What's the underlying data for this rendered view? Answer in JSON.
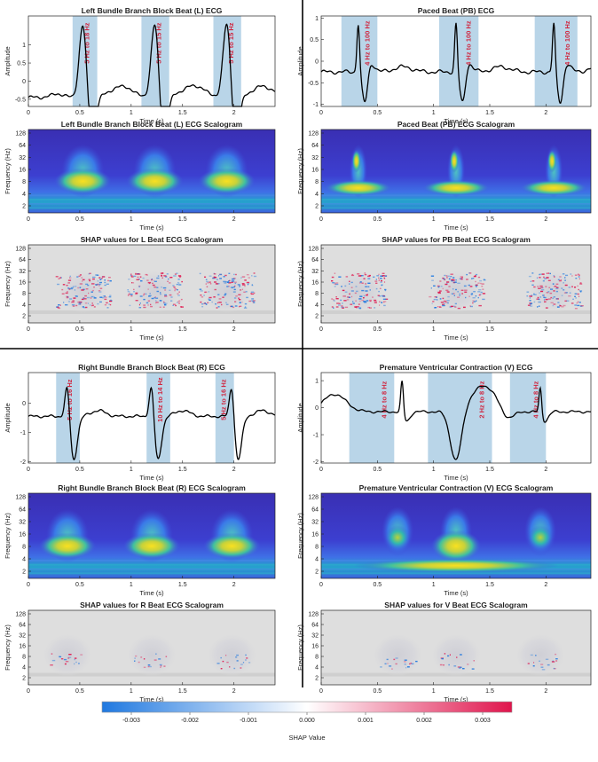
{
  "panels": [
    {
      "id": "L",
      "ecg": {
        "title": "Left Bundle Branch Block Beat (L) ECG",
        "ylabel": "Amplitude",
        "xlabel": "Time (s)",
        "yticks": [
          "1",
          "0.5",
          "0",
          "-0.5"
        ],
        "ylim": [
          -0.7,
          1.8
        ],
        "beats": [
          0.53,
          1.23,
          1.93
        ],
        "bands": [
          {
            "x0": 0.43,
            "x1": 0.67,
            "label": "5 Hz to 18 Hz"
          },
          {
            "x0": 1.1,
            "x1": 1.37,
            "label": "5 Hz to 15 Hz"
          },
          {
            "x0": 1.8,
            "x1": 2.07,
            "label": "5 Hz to 15 Hz"
          }
        ]
      },
      "scalogram": {
        "title": "Left Bundle Branch Block Beat (L) ECG Scalogram",
        "ylabel": "Frequency (Hz)",
        "xlabel": "Time (s)",
        "yticks": [
          "128",
          "64",
          "32",
          "16",
          "8",
          "4",
          "2"
        ]
      },
      "shap": {
        "title": "SHAP values for L Beat ECG Scalogram",
        "ylabel": "Frequency (Hz)",
        "xlabel": "Time (s)",
        "yticks": [
          "128",
          "64",
          "32",
          "16",
          "8",
          "4",
          "2"
        ]
      }
    },
    {
      "id": "PB",
      "ecg": {
        "title": "Paced Beat (PB) ECG",
        "ylabel": "Amplitude",
        "xlabel": "Time (s)",
        "yticks": [
          "1",
          "0.5",
          "0",
          "-0.5",
          "-1"
        ],
        "ylim": [
          -1.05,
          1.05
        ],
        "beats": [
          0.33,
          1.2,
          2.07
        ],
        "bands": [
          {
            "x0": 0.18,
            "x1": 0.5,
            "label": "4 Hz to 100 Hz"
          },
          {
            "x0": 1.05,
            "x1": 1.4,
            "label": "4 Hz to 100 Hz"
          },
          {
            "x0": 1.9,
            "x1": 2.28,
            "label": "4 Hz to 100 Hz"
          }
        ]
      },
      "scalogram": {
        "title": "Paced Beat (PB) ECG Scalogram",
        "ylabel": "Frequency (Hz)",
        "xlabel": "Time (s)",
        "yticks": [
          "128",
          "64",
          "32",
          "16",
          "8",
          "4",
          "2"
        ]
      },
      "shap": {
        "title": "SHAP values for PB Beat ECG Scalogram",
        "ylabel": "Frequency (Hz)",
        "xlabel": "Time (s)",
        "yticks": [
          "128",
          "64",
          "32",
          "16",
          "8",
          "4",
          "2"
        ]
      }
    },
    {
      "id": "R",
      "ecg": {
        "title": "Right Bundle Branch Block Beat (R) ECG",
        "ylabel": "Amplitude",
        "xlabel": "Time (s)",
        "yticks": [
          "0",
          "-1",
          "-2"
        ],
        "ylim": [
          -2.05,
          1.05
        ],
        "beats": [
          0.38,
          1.2,
          1.98
        ],
        "bands": [
          {
            "x0": 0.27,
            "x1": 0.5,
            "label": "5 Hz to 16 Hz"
          },
          {
            "x0": 1.15,
            "x1": 1.38,
            "label": "10 Hz to 14 Hz"
          },
          {
            "x0": 1.82,
            "x1": 2.0,
            "label": "5 Hz to 16 Hz"
          }
        ]
      },
      "scalogram": {
        "title": "Right Bundle Branch Block Beat (R) ECG Scalogram",
        "ylabel": "Frequency (Hz)",
        "xlabel": "Time (s)",
        "yticks": [
          "128",
          "64",
          "32",
          "16",
          "8",
          "4",
          "2"
        ]
      },
      "shap": {
        "title": "SHAP values for R Beat ECG Scalogram",
        "ylabel": "Frequency (Hz)",
        "xlabel": "Time (s)",
        "yticks": [
          "128",
          "64",
          "32",
          "16",
          "8",
          "4",
          "2"
        ]
      }
    },
    {
      "id": "V",
      "ecg": {
        "title": "Premature Ventricular Contraction (V) ECG",
        "ylabel": "Amplitude",
        "xlabel": "Time (s)",
        "yticks": [
          "1",
          "0",
          "-1",
          "-2"
        ],
        "ylim": [
          -2.05,
          1.3
        ],
        "beats": [
          0.72,
          1.95
        ],
        "bands": [
          {
            "x0": 0.25,
            "x1": 0.65,
            "label": "4 Hz to 8 Hz"
          },
          {
            "x0": 0.95,
            "x1": 1.52,
            "label": "2 Hz to 8 Hz"
          },
          {
            "x0": 1.68,
            "x1": 2.0,
            "label": "4 Hz to 8 Hz"
          }
        ]
      },
      "scalogram": {
        "title": "Premature Ventricular Contraction (V) ECG Scalogram",
        "ylabel": "Frequency (Hz)",
        "xlabel": "Time (s)",
        "yticks": [
          "128",
          "64",
          "32",
          "16",
          "8",
          "4",
          "2"
        ]
      },
      "shap": {
        "title": "SHAP values for V Beat ECG Scalogram",
        "ylabel": "Frequency (Hz)",
        "xlabel": "Time (s)",
        "yticks": [
          "128",
          "64",
          "32",
          "16",
          "8",
          "4",
          "2"
        ]
      }
    }
  ],
  "time_axis": {
    "xlim": [
      0,
      2.4
    ],
    "ticks": [
      "0",
      "0.5",
      "1",
      "1.5",
      "2"
    ],
    "tick_values": [
      0,
      0.5,
      1,
      1.5,
      2
    ]
  },
  "colorbar": {
    "label": "SHAP Value",
    "ticks": [
      "-0.003",
      "-0.002",
      "-0.001",
      "0.000",
      "0.001",
      "0.002",
      "0.003"
    ],
    "tick_values": [
      -0.003,
      -0.002,
      -0.001,
      0.0,
      0.001,
      0.002,
      0.003
    ],
    "range": [
      -0.0035,
      0.0035
    ],
    "neg_color": "#1f78e0",
    "pos_color": "#e0144c"
  },
  "colors": {
    "band": "#b9d5e8",
    "band_label": "#d0263f",
    "trace": "#000000",
    "parula_low": "#3a2fb3",
    "parula_high": "#f9e020"
  },
  "chart_data": [
    {
      "type": "line",
      "title": "Left Bundle Branch Block Beat (L) ECG",
      "xlabel": "Time (s)",
      "ylabel": "Amplitude",
      "xlim": [
        0,
        2.4
      ],
      "ylim": [
        -0.7,
        1.8
      ],
      "annotations": [
        "5 Hz to 18 Hz",
        "5 Hz to 15 Hz",
        "5 Hz to 15 Hz"
      ]
    },
    {
      "type": "heatmap",
      "title": "Left Bundle Branch Block Beat (L) ECG Scalogram",
      "xlabel": "Time (s)",
      "ylabel": "Frequency (Hz)"
    },
    {
      "type": "heatmap",
      "title": "SHAP values for L Beat ECG Scalogram",
      "xlabel": "Time (s)",
      "ylabel": "Frequency (Hz)"
    },
    {
      "type": "line",
      "title": "Paced Beat (PB) ECG",
      "xlabel": "Time (s)",
      "ylabel": "Amplitude",
      "xlim": [
        0,
        2.4
      ],
      "ylim": [
        -1.05,
        1.05
      ],
      "annotations": [
        "4 Hz to 100 Hz",
        "4 Hz to 100 Hz",
        "4 Hz to 100 Hz"
      ]
    },
    {
      "type": "heatmap",
      "title": "Paced Beat (PB) ECG Scalogram",
      "xlabel": "Time (s)",
      "ylabel": "Frequency (Hz)"
    },
    {
      "type": "heatmap",
      "title": "SHAP values for PB Beat ECG Scalogram",
      "xlabel": "Time (s)",
      "ylabel": "Frequency (Hz)"
    },
    {
      "type": "line",
      "title": "Right Bundle Branch Block Beat (R) ECG",
      "xlabel": "Time (s)",
      "ylabel": "Amplitude",
      "xlim": [
        0,
        2.4
      ],
      "ylim": [
        -2.05,
        1.05
      ],
      "annotations": [
        "5 Hz to 16 Hz",
        "10 Hz to 14 Hz",
        "5 Hz to 16 Hz"
      ]
    },
    {
      "type": "heatmap",
      "title": "Right Bundle Branch Block Beat (R) ECG Scalogram",
      "xlabel": "Time (s)",
      "ylabel": "Frequency (Hz)"
    },
    {
      "type": "heatmap",
      "title": "SHAP values for R Beat ECG Scalogram",
      "xlabel": "Time (s)",
      "ylabel": "Frequency (Hz)"
    },
    {
      "type": "line",
      "title": "Premature Ventricular Contraction (V) ECG",
      "xlabel": "Time (s)",
      "ylabel": "Amplitude",
      "xlim": [
        0,
        2.4
      ],
      "ylim": [
        -2.05,
        1.3
      ],
      "annotations": [
        "4 Hz to 8 Hz",
        "2 Hz to 8 Hz",
        "4 Hz to 8 Hz"
      ]
    },
    {
      "type": "heatmap",
      "title": "Premature Ventricular Contraction (V) ECG Scalogram",
      "xlabel": "Time (s)",
      "ylabel": "Frequency (Hz)"
    },
    {
      "type": "heatmap",
      "title": "SHAP values for V Beat ECG Scalogram",
      "xlabel": "Time (s)",
      "ylabel": "Frequency (Hz)"
    }
  ]
}
